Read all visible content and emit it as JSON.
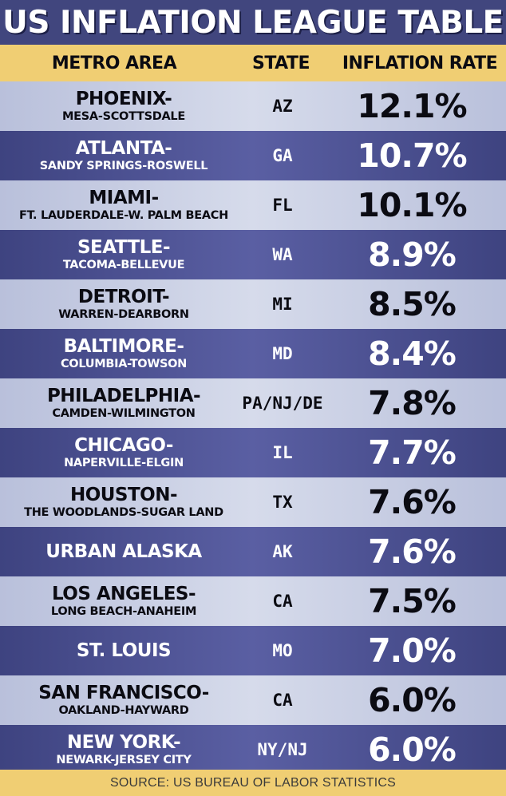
{
  "title": "US INFLATION LEAGUE TABLE",
  "headers": {
    "metro": "METRO AREA",
    "state": "STATE",
    "rate": "INFLATION RATE"
  },
  "rows": [
    {
      "metro": "PHOENIX-",
      "sub": "MESA-SCOTTSDALE",
      "state": "AZ",
      "rate": "12.1%"
    },
    {
      "metro": "ATLANTA-",
      "sub": "SANDY SPRINGS-ROSWELL",
      "state": "GA",
      "rate": "10.7%"
    },
    {
      "metro": "MIAMI-",
      "sub": "FT. LAUDERDALE-W. PALM BEACH",
      "state": "FL",
      "rate": "10.1%"
    },
    {
      "metro": "SEATTLE-",
      "sub": "TACOMA-BELLEVUE",
      "state": "WA",
      "rate": "8.9%"
    },
    {
      "metro": "DETROIT-",
      "sub": "WARREN-DEARBORN",
      "state": "MI",
      "rate": "8.5%"
    },
    {
      "metro": "BALTIMORE-",
      "sub": "COLUMBIA-TOWSON",
      "state": "MD",
      "rate": "8.4%"
    },
    {
      "metro": "PHILADELPHIA-",
      "sub": "CAMDEN-WILMINGTON",
      "state": "PA/NJ/DE",
      "rate": "7.8%"
    },
    {
      "metro": "CHICAGO-",
      "sub": "NAPERVILLE-ELGIN",
      "state": "IL",
      "rate": "7.7%"
    },
    {
      "metro": "HOUSTON-",
      "sub": "THE WOODLANDS-SUGAR LAND",
      "state": "TX",
      "rate": "7.6%"
    },
    {
      "metro": "URBAN ALASKA",
      "sub": "",
      "state": "AK",
      "rate": "7.6%"
    },
    {
      "metro": "LOS ANGELES-",
      "sub": "LONG BEACH-ANAHEIM",
      "state": "CA",
      "rate": "7.5%"
    },
    {
      "metro": "ST. LOUIS",
      "sub": "",
      "state": "MO",
      "rate": "7.0%"
    },
    {
      "metro": "SAN FRANCISCO-",
      "sub": "OAKLAND-HAYWARD",
      "state": "CA",
      "rate": "6.0%"
    },
    {
      "metro": "NEW YORK-",
      "sub": "NEWARK-JERSEY CITY",
      "state": "NY/NJ",
      "rate": "6.0%"
    }
  ],
  "footer": "SOURCE: US BUREAU OF LABOR STATISTICS",
  "colors": {
    "background": "#41467e",
    "header_band": "#f0ce73",
    "row_light": "#d6dbeb",
    "row_dark": "#5a5fa3"
  },
  "chart_data": {
    "type": "table",
    "title": "US INFLATION LEAGUE TABLE",
    "columns": [
      "METRO AREA",
      "STATE",
      "INFLATION RATE"
    ],
    "rows": [
      [
        "PHOENIX-MESA-SCOTTSDALE",
        "AZ",
        12.1
      ],
      [
        "ATLANTA-SANDY SPRINGS-ROSWELL",
        "GA",
        10.7
      ],
      [
        "MIAMI-FT. LAUDERDALE-W. PALM BEACH",
        "FL",
        10.1
      ],
      [
        "SEATTLE-TACOMA-BELLEVUE",
        "WA",
        8.9
      ],
      [
        "DETROIT-WARREN-DEARBORN",
        "MI",
        8.5
      ],
      [
        "BALTIMORE-COLUMBIA-TOWSON",
        "MD",
        8.4
      ],
      [
        "PHILADELPHIA-CAMDEN-WILMINGTON",
        "PA/NJ/DE",
        7.8
      ],
      [
        "CHICAGO-NAPERVILLE-ELGIN",
        "IL",
        7.7
      ],
      [
        "HOUSTON-THE WOODLANDS-SUGAR LAND",
        "TX",
        7.6
      ],
      [
        "URBAN ALASKA",
        "AK",
        7.6
      ],
      [
        "LOS ANGELES-LONG BEACH-ANAHEIM",
        "CA",
        7.5
      ],
      [
        "ST. LOUIS",
        "MO",
        7.0
      ],
      [
        "SAN FRANCISCO-OAKLAND-HAYWARD",
        "CA",
        6.0
      ],
      [
        "NEW YORK-NEWARK-JERSEY CITY",
        "NY/NJ",
        6.0
      ]
    ],
    "source": "SOURCE: US BUREAU OF LABOR STATISTICS"
  }
}
